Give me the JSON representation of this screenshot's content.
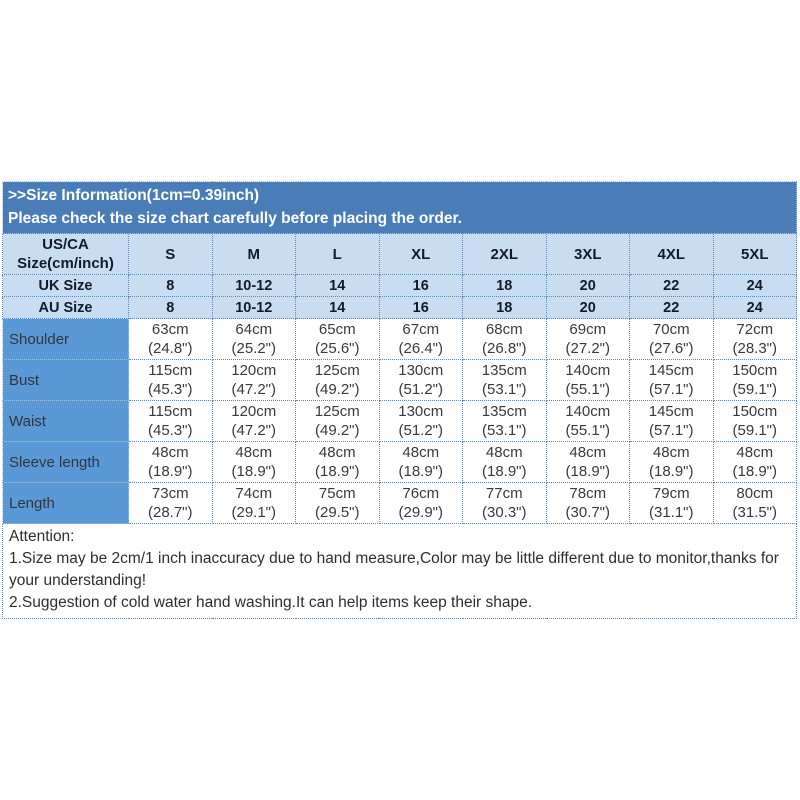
{
  "colors": {
    "banner_bg": "#4A7CB8",
    "light_blue_bg": "#C8DCF2",
    "label_column_bg": "#5B99D6",
    "dotted_border": "#5E88B8",
    "banner_text": "#FFFFFF",
    "header_text": "#101C2B",
    "value_text": "#3A3A3A"
  },
  "banner": {
    "line1": ">>Size Information(1cm=0.39inch)",
    "line2": "Please check the size chart carefully before placing the order."
  },
  "chart": {
    "corner": {
      "line1": "US/CA",
      "line2": "Size(cm/inch)"
    },
    "columns": [
      "S",
      "M",
      "L",
      "XL",
      "2XL",
      "3XL",
      "4XL",
      "5XL"
    ],
    "size_rows": [
      {
        "label": "UK Size",
        "values": [
          "8",
          "10-12",
          "14",
          "16",
          "18",
          "20",
          "22",
          "24"
        ]
      },
      {
        "label": "AU Size",
        "values": [
          "8",
          "10-12",
          "14",
          "16",
          "18",
          "20",
          "22",
          "24"
        ]
      }
    ],
    "measurement_rows": [
      {
        "label": "Shoulder",
        "values": [
          {
            "cm": "63cm",
            "inch": "(24.8\")"
          },
          {
            "cm": "64cm",
            "inch": "(25.2\")"
          },
          {
            "cm": "65cm",
            "inch": "(25.6\")"
          },
          {
            "cm": "67cm",
            "inch": "(26.4\")"
          },
          {
            "cm": "68cm",
            "inch": "(26.8\")"
          },
          {
            "cm": "69cm",
            "inch": "(27.2\")"
          },
          {
            "cm": "70cm",
            "inch": "(27.6\")"
          },
          {
            "cm": "72cm",
            "inch": "(28.3\")"
          }
        ]
      },
      {
        "label": "Bust",
        "values": [
          {
            "cm": "115cm",
            "inch": "(45.3\")"
          },
          {
            "cm": "120cm",
            "inch": "(47.2\")"
          },
          {
            "cm": "125cm",
            "inch": "(49.2\")"
          },
          {
            "cm": "130cm",
            "inch": "(51.2\")"
          },
          {
            "cm": "135cm",
            "inch": "(53.1\")"
          },
          {
            "cm": "140cm",
            "inch": "(55.1\")"
          },
          {
            "cm": "145cm",
            "inch": "(57.1\")"
          },
          {
            "cm": "150cm",
            "inch": "(59.1\")"
          }
        ]
      },
      {
        "label": "Waist",
        "values": [
          {
            "cm": "115cm",
            "inch": "(45.3\")"
          },
          {
            "cm": "120cm",
            "inch": "(47.2\")"
          },
          {
            "cm": "125cm",
            "inch": "(49.2\")"
          },
          {
            "cm": "130cm",
            "inch": "(51.2\")"
          },
          {
            "cm": "135cm",
            "inch": "(53.1\")"
          },
          {
            "cm": "140cm",
            "inch": "(55.1\")"
          },
          {
            "cm": "145cm",
            "inch": "(57.1\")"
          },
          {
            "cm": "150cm",
            "inch": "(59.1\")"
          }
        ]
      },
      {
        "label": "Sleeve length",
        "values": [
          {
            "cm": "48cm",
            "inch": "(18.9\")"
          },
          {
            "cm": "48cm",
            "inch": "(18.9\")"
          },
          {
            "cm": "48cm",
            "inch": "(18.9\")"
          },
          {
            "cm": "48cm",
            "inch": "(18.9\")"
          },
          {
            "cm": "48cm",
            "inch": "(18.9\")"
          },
          {
            "cm": "48cm",
            "inch": "(18.9\")"
          },
          {
            "cm": "48cm",
            "inch": "(18.9\")"
          },
          {
            "cm": "48cm",
            "inch": "(18.9\")"
          }
        ]
      },
      {
        "label": "Length",
        "values": [
          {
            "cm": "73cm",
            "inch": "(28.7\")"
          },
          {
            "cm": "74cm",
            "inch": "(29.1\")"
          },
          {
            "cm": "75cm",
            "inch": "(29.5\")"
          },
          {
            "cm": "76cm",
            "inch": "(29.9\")"
          },
          {
            "cm": "77cm",
            "inch": "(30.3\")"
          },
          {
            "cm": "78cm",
            "inch": "(30.7\")"
          },
          {
            "cm": "79cm",
            "inch": "(31.1\")"
          },
          {
            "cm": "80cm",
            "inch": "(31.5\")"
          }
        ]
      }
    ]
  },
  "attention": {
    "title": "Attention:",
    "line1": "1.Size may be 2cm/1 inch inaccuracy due to hand measure,Color may be little different due to monitor,thanks for your understanding!",
    "line2": "2.Suggestion of cold water hand washing.It can help items keep their shape."
  }
}
